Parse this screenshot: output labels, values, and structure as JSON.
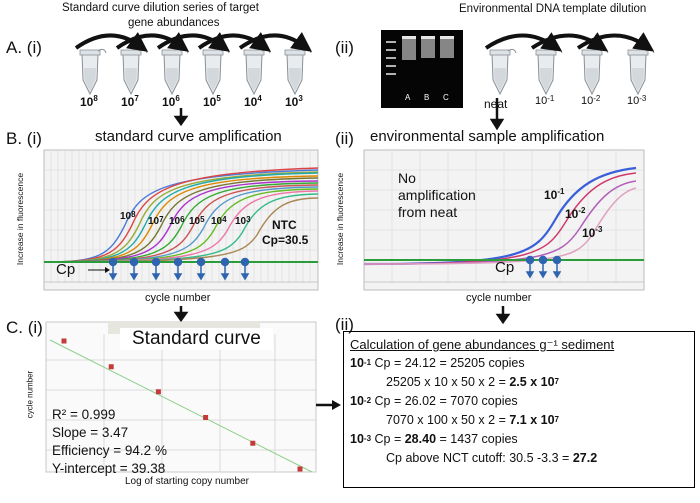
{
  "panel_a": {
    "label": "A. (i)",
    "left_title": "Standard curve dilution series of target gene abundances",
    "left_title_line1": "Standard curve dilution series of target",
    "left_title_line2": "gene abundances",
    "left_tubes": [
      "10^8",
      "10^7",
      "10^6",
      "10^5",
      "10^4",
      "10^3"
    ],
    "right_label": "(ii)",
    "right_title": "Environmental DNA template dilution",
    "gel_lanes": [
      "A",
      "B",
      "C"
    ],
    "right_tubes": [
      "neat",
      "10^-1",
      "10^-2",
      "10^-3"
    ]
  },
  "panel_b": {
    "label": "B. (i)",
    "left_title": "standard curve amplification",
    "right_label": "(ii)",
    "right_title": "environmental sample amplification",
    "y_axis": "Increase in fluorescence",
    "x_axis": "cycle number",
    "cp_label": "Cp",
    "ntc_line1": "NTC",
    "ntc_line2": "Cp=30.5",
    "left_curve_labels": [
      "10^8",
      "10^7",
      "10^6",
      "10^5",
      "10^4",
      "10^3"
    ],
    "no_amp_line1": "No",
    "no_amp_line2": "amplification",
    "no_amp_line3": "from neat",
    "right_curve_labels": [
      "10^-1",
      "10^-2",
      "10^-3"
    ]
  },
  "panel_c": {
    "label": "C. (i)",
    "chart_title": "Standard curve",
    "y_axis": "cycle number",
    "x_axis": "Log of starting copy number",
    "r2": "R² = 0.999",
    "slope": "Slope = 3.47",
    "efficiency": "Efficiency = 94.2 %",
    "intercept": "Y-intercept = 39.38",
    "right_label": "(ii)"
  },
  "calculation": {
    "title": "Calculation of gene abundances g⁻¹ sediment",
    "r1_exp": "10",
    "r1_sup": "-1",
    "r1_text": " Cp = 24.12 = 25205 copies",
    "r2_text": "25205 x 10 x 50 x 2 = ",
    "r2_res": "2.5 x 10",
    "r2_sup": "7",
    "r3_exp": "10",
    "r3_sup": "-2",
    "r3_text": " Cp = 26.02  = 7070 copies",
    "r4_text": "7070 x 100 x 50 x 2 = ",
    "r4_res": "7.1 x 10",
    "r4_sup": "7",
    "r5_exp": "10",
    "r5_sup": "-3",
    "r5_text": " Cp = ",
    "r5_val": "28.40",
    "r5_tail": " = 1437 copies",
    "r6_text": "Cp above NCT cutoff: 30.5 -3.3 = ",
    "r6_res": "27.2"
  },
  "chart_data": {
    "type": "scatter",
    "title": "Standard curve",
    "xlabel": "Log of starting copy number",
    "ylabel": "cycle number",
    "x": [
      3,
      4,
      5,
      6,
      7,
      8
    ],
    "y": [
      29.0,
      25.5,
      22.1,
      18.6,
      15.1,
      11.6
    ],
    "trendline": "linear"
  }
}
